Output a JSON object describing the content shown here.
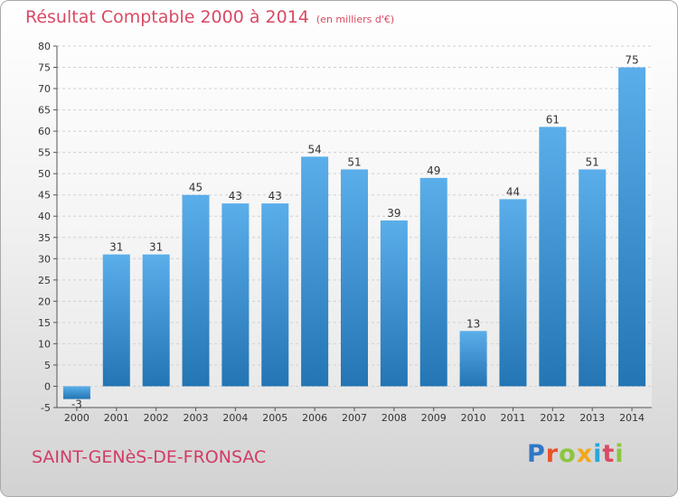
{
  "header": {
    "title": "Résultat Comptable 2000 à 2014",
    "unit": "(en milliers d'€)"
  },
  "commune": "SAINT-GENèS-DE-FRONSAC",
  "logo": {
    "letters": [
      "P",
      "r",
      "o",
      "x",
      "i",
      "t",
      "i"
    ],
    "colors": [
      "#2f78c5",
      "#e8522b",
      "#8cc63f",
      "#f2a71b",
      "#2aa6d8",
      "#d94a63",
      "#8cc63f"
    ]
  },
  "colors": {
    "bar_light": "#5aaeea",
    "bar_dark": "#2375b3",
    "grid": "#d0d0d0",
    "title": "#d94a63"
  },
  "chart_data": {
    "type": "bar",
    "categories": [
      "2000",
      "2001",
      "2002",
      "2003",
      "2004",
      "2005",
      "2006",
      "2007",
      "2008",
      "2009",
      "2010",
      "2011",
      "2012",
      "2013",
      "2014"
    ],
    "values": [
      -3,
      31,
      31,
      45,
      43,
      43,
      54,
      51,
      39,
      49,
      13,
      44,
      61,
      51,
      75
    ],
    "ylim": [
      -5,
      80
    ],
    "yticks": [
      -5,
      0,
      5,
      10,
      15,
      20,
      25,
      30,
      35,
      40,
      45,
      50,
      55,
      60,
      65,
      70,
      75,
      80
    ],
    "grid": true
  }
}
